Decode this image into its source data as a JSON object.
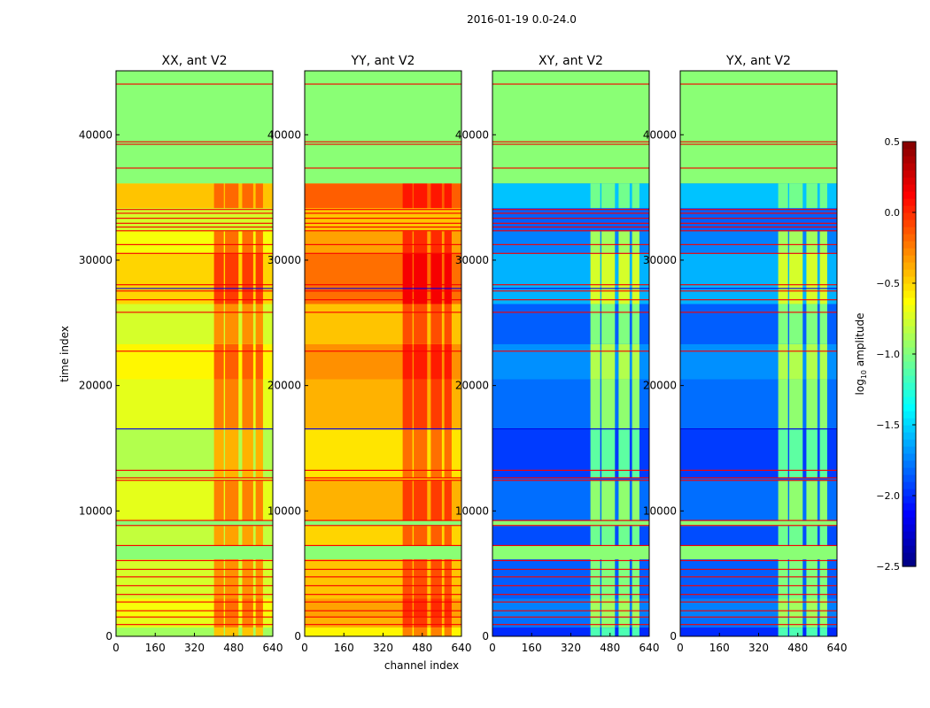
{
  "chart_data": {
    "type": "heatmap",
    "title": "2016-01-19 0.0-24.0",
    "xlabel": "channel index",
    "ylabel": "time index",
    "xlim": [
      0,
      640
    ],
    "ylim": [
      0,
      45100
    ],
    "xticks": [
      "0",
      "160",
      "320",
      "480",
      "640"
    ],
    "yticks": [
      "0",
      "10000",
      "20000",
      "30000",
      "40000"
    ],
    "colorbar": {
      "label": "log10 amplitude",
      "label_main": "log",
      "label_sub": "10",
      "label_rest": " amplitude",
      "range": [
        -2.5,
        0.5
      ],
      "ticks": [
        "0.5",
        "0.0",
        "−0.5",
        "−1.0",
        "−1.5",
        "−2.0",
        "−2.5"
      ],
      "colormap": "jet"
    },
    "panels": [
      {
        "title": "XX, ant V2",
        "base": -0.75,
        "rfi_boost": 0.45
      },
      {
        "title": "YY, ant V2",
        "base": -0.45,
        "rfi_boost": 0.35
      },
      {
        "title": "XY, ant V2",
        "base": -1.85,
        "rfi_boost": 0.85
      },
      {
        "title": "YX, ant V2",
        "base": -1.85,
        "rfi_boost": 0.85
      }
    ],
    "rfi_channel_blocks": [
      [
        400,
        440
      ],
      [
        445,
        500
      ],
      [
        515,
        560
      ],
      [
        570,
        600
      ]
    ],
    "data_row_bands": [
      [
        0,
        700,
        -0.15
      ],
      [
        700,
        1500,
        0.05
      ],
      [
        1500,
        3000,
        0.1
      ],
      [
        3000,
        6140,
        0.0
      ],
      [
        7200,
        8800,
        -0.05
      ],
      [
        9200,
        12400,
        0.05
      ],
      [
        12600,
        16500,
        -0.1
      ],
      [
        16500,
        20500,
        0.05
      ],
      [
        20500,
        23300,
        0.15
      ],
      [
        23300,
        26500,
        0.0
      ],
      [
        26500,
        30500,
        0.25
      ],
      [
        30500,
        32300,
        0.1
      ]
    ],
    "flagged_bands": [
      [
        6140,
        7200
      ],
      [
        36120,
        45100
      ],
      [
        8800,
        9200
      ]
    ],
    "flag_value": -0.97,
    "bright_bands": [
      [
        34150,
        36120,
        0.3
      ]
    ],
    "red_lines": [
      900,
      1500,
      2000,
      2700,
      3300,
      4000,
      4700,
      5300,
      6000,
      7200,
      8800,
      9200,
      12400,
      12600,
      13200,
      22700,
      25800,
      26800,
      27500,
      28000,
      30500,
      31200,
      32300,
      32600,
      32900,
      33300,
      33700,
      34000,
      37300,
      39200,
      39400,
      44000
    ],
    "red_value": 0.15,
    "blue_lines": [
      16500,
      27700
    ],
    "blue_value": -2.2
  }
}
